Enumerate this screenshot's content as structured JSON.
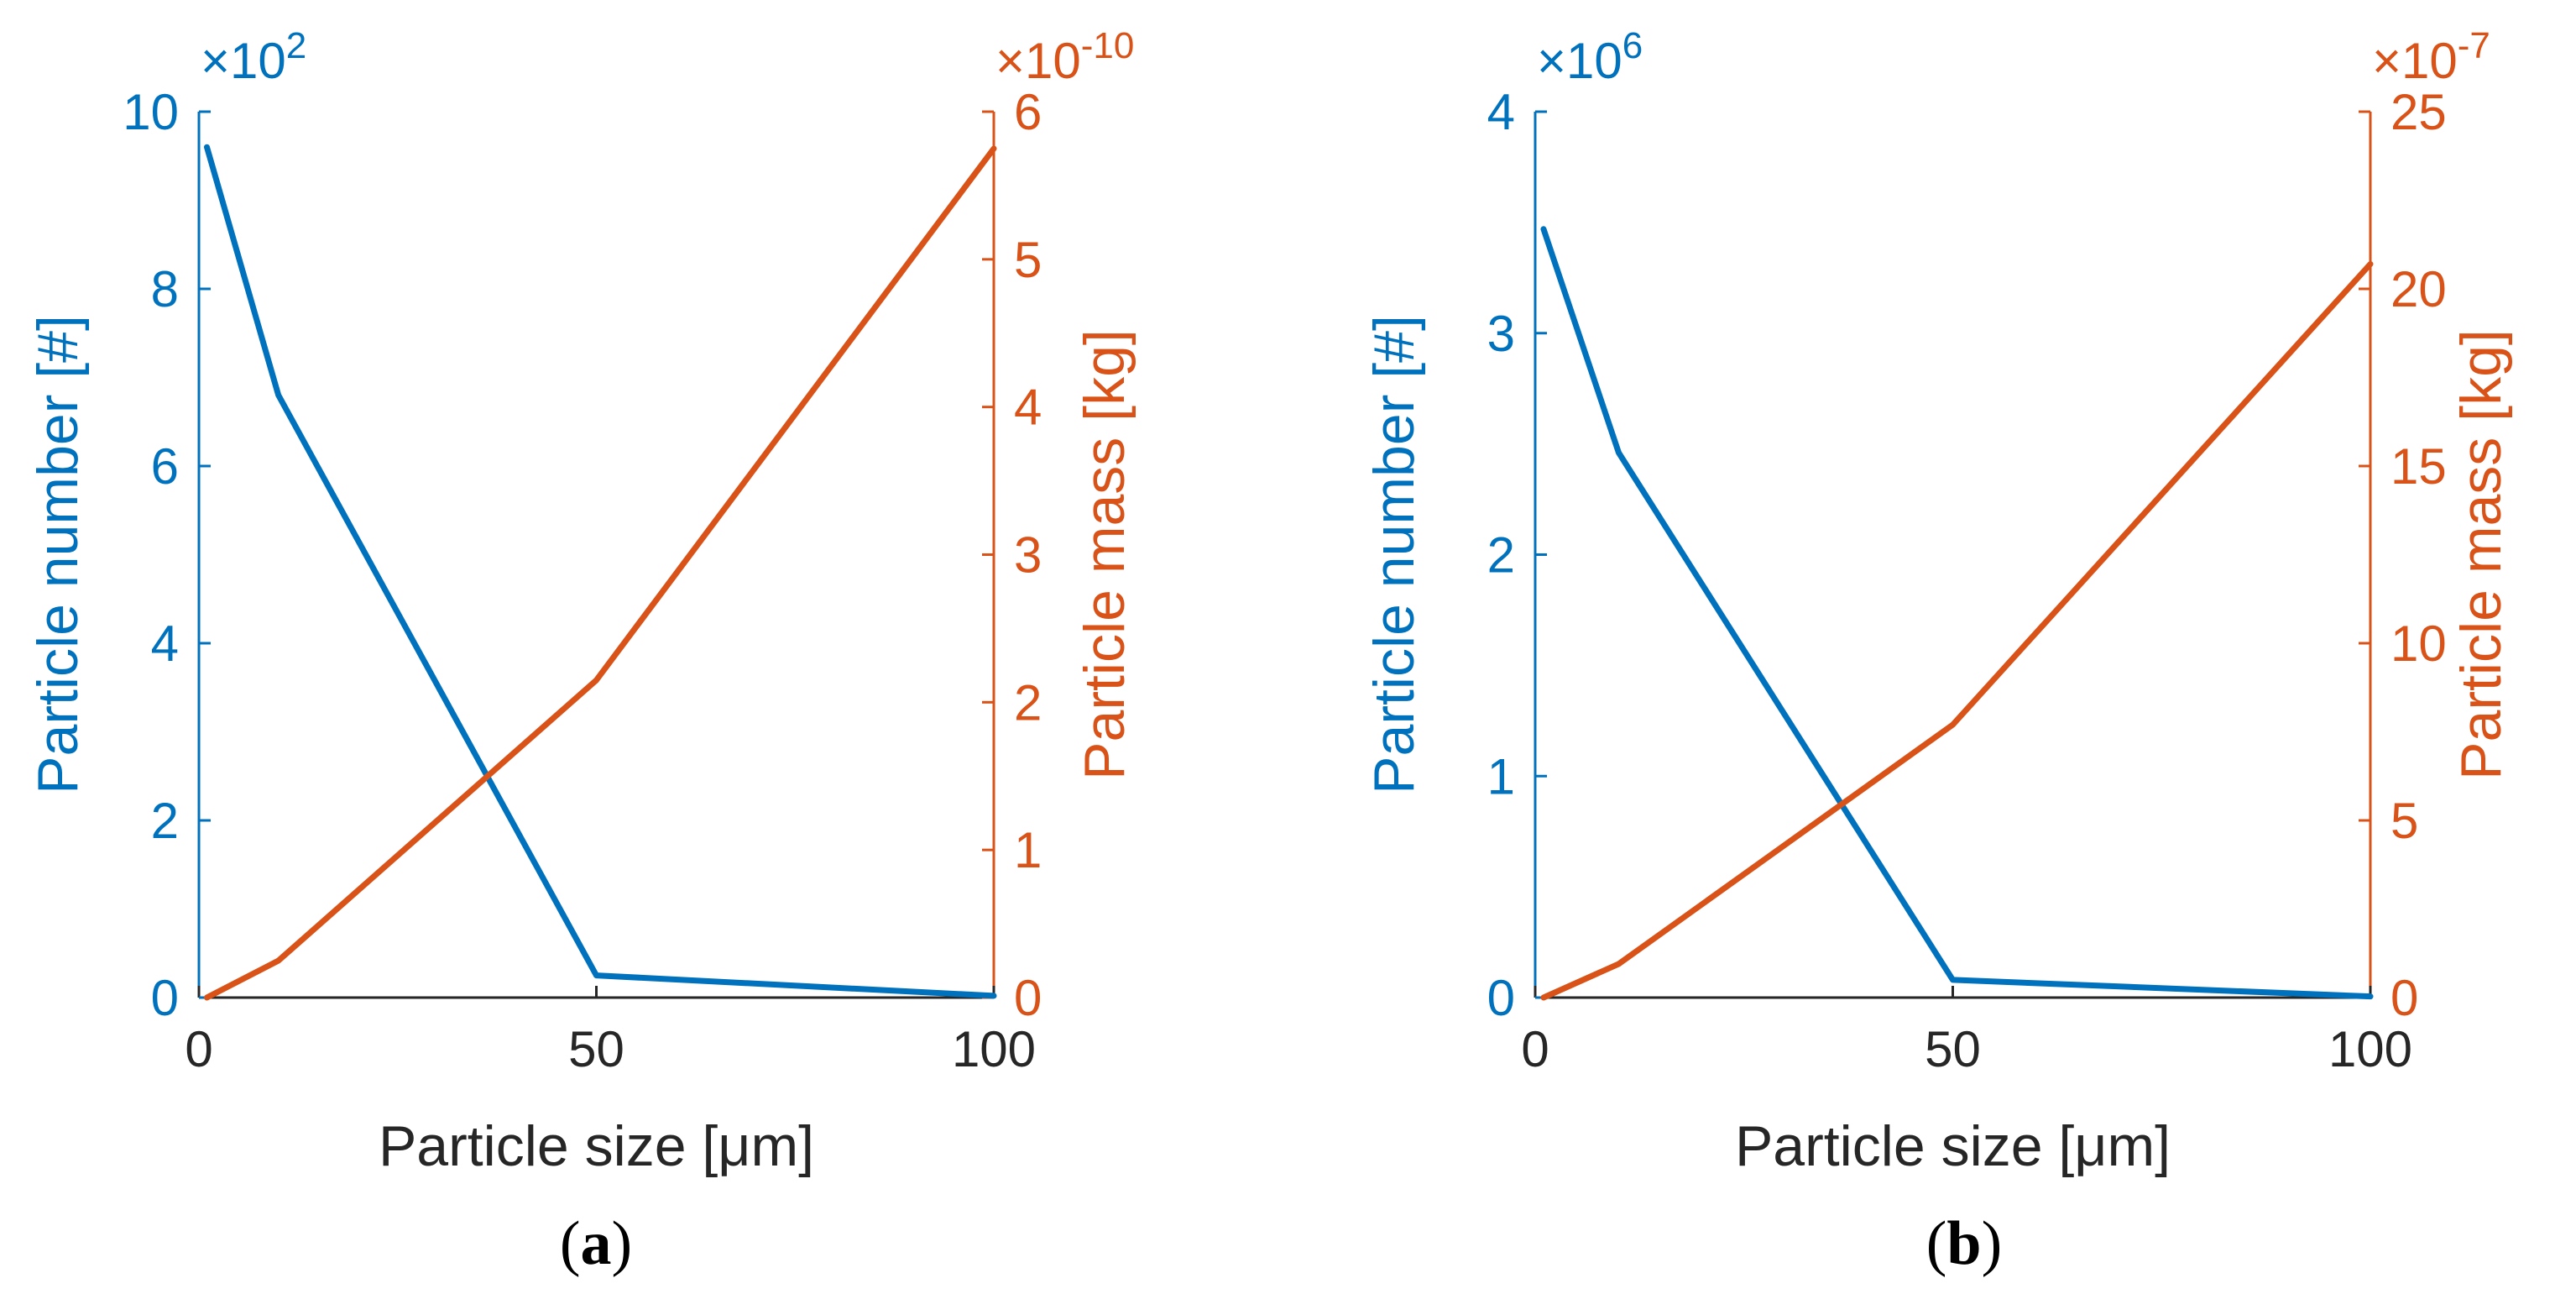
{
  "chart_data": [
    {
      "type": "line",
      "panel_label": "(a)",
      "panel_letter": "a",
      "xlabel": "Particle size [μm]",
      "xlim": [
        0,
        100
      ],
      "xticks": [
        0,
        50,
        100
      ],
      "y_left": {
        "label": "Particle number [#]",
        "lim": [
          0,
          10
        ],
        "ticks": [
          0,
          2,
          4,
          6,
          8,
          10
        ],
        "exponent_base": "×10",
        "exponent_power": "2",
        "color": "#0072BD"
      },
      "y_right": {
        "label": "Particle mass [kg]",
        "lim": [
          0,
          6
        ],
        "ticks": [
          0,
          1,
          2,
          3,
          4,
          5,
          6
        ],
        "exponent_base": "×10",
        "exponent_power": "-10",
        "color": "#D95319"
      },
      "series": [
        {
          "axis": "left",
          "color": "#0072BD",
          "x": [
            1,
            10,
            50,
            100
          ],
          "y": [
            9.6,
            6.8,
            0.25,
            0.02
          ]
        },
        {
          "axis": "right",
          "color": "#D95319",
          "x": [
            1,
            10,
            50,
            100
          ],
          "y": [
            0.0,
            0.25,
            2.15,
            5.75
          ]
        }
      ]
    },
    {
      "type": "line",
      "panel_label": "(b)",
      "panel_letter": "b",
      "xlabel": "Particle size [μm]",
      "xlim": [
        0,
        100
      ],
      "xticks": [
        0,
        50,
        100
      ],
      "y_left": {
        "label": "Particle number [#]",
        "lim": [
          0,
          4
        ],
        "ticks": [
          0,
          1,
          2,
          3,
          4
        ],
        "exponent_base": "×10",
        "exponent_power": "6",
        "color": "#0072BD"
      },
      "y_right": {
        "label": "Particle mass [kg]",
        "lim": [
          0,
          25
        ],
        "ticks": [
          0,
          5,
          10,
          15,
          20,
          25
        ],
        "exponent_base": "×10",
        "exponent_power": "-7",
        "color": "#D95319"
      },
      "series": [
        {
          "axis": "left",
          "color": "#0072BD",
          "x": [
            1,
            10,
            50,
            100
          ],
          "y": [
            3.47,
            2.46,
            0.08,
            0.005
          ]
        },
        {
          "axis": "right",
          "color": "#D95319",
          "x": [
            1,
            10,
            50,
            100
          ],
          "y": [
            0.0,
            0.95,
            7.7,
            20.7
          ]
        }
      ]
    }
  ]
}
